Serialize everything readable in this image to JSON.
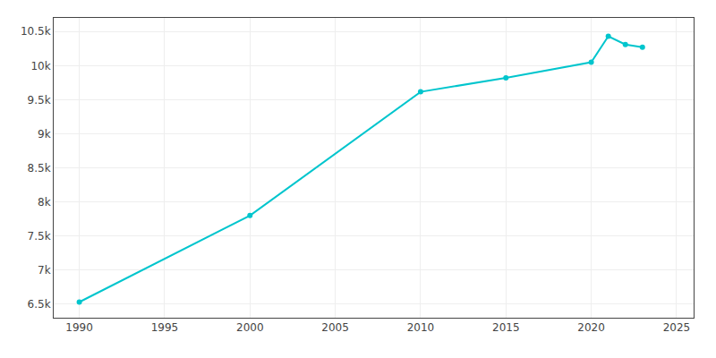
{
  "chart_data": {
    "type": "line",
    "x": [
      1990,
      2000,
      2010,
      2015,
      2020,
      2021,
      2022,
      2023
    ],
    "values": [
      6530,
      7800,
      9615,
      9820,
      10050,
      10430,
      10310,
      10270
    ],
    "color": "#00c5cd",
    "marker": "circle",
    "xlim": [
      1988.5,
      2026
    ],
    "xticks": [
      1990,
      1995,
      2000,
      2005,
      2010,
      2015,
      2020,
      2025
    ],
    "ylim": [
      6300,
      10700
    ],
    "yticks": [
      {
        "value": 6500,
        "label": "6.5k"
      },
      {
        "value": 7000,
        "label": "7k"
      },
      {
        "value": 7500,
        "label": "7.5k"
      },
      {
        "value": 8000,
        "label": "8k"
      },
      {
        "value": 8500,
        "label": "8.5k"
      },
      {
        "value": 9000,
        "label": "9k"
      },
      {
        "value": 9500,
        "label": "9.5k"
      },
      {
        "value": 10000,
        "label": "10k"
      },
      {
        "value": 10500,
        "label": "10.5k"
      }
    ],
    "grid": true
  }
}
